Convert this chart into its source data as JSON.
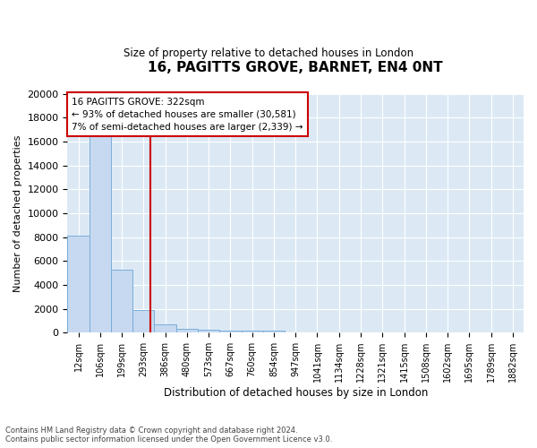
{
  "title": "16, PAGITTS GROVE, BARNET, EN4 0NT",
  "subtitle": "Size of property relative to detached houses in London",
  "xlabel": "Distribution of detached houses by size in London",
  "ylabel": "Number of detached properties",
  "footnote": "Contains HM Land Registry data © Crown copyright and database right 2024.\nContains public sector information licensed under the Open Government Licence v3.0.",
  "bar_categories": [
    "12sqm",
    "106sqm",
    "199sqm",
    "293sqm",
    "386sqm",
    "480sqm",
    "573sqm",
    "667sqm",
    "760sqm",
    "854sqm",
    "947sqm",
    "1041sqm",
    "1134sqm",
    "1228sqm",
    "1321sqm",
    "1415sqm",
    "1508sqm",
    "1602sqm",
    "1695sqm",
    "1789sqm",
    "1882sqm"
  ],
  "bar_values": [
    8100,
    16500,
    5300,
    1900,
    700,
    310,
    220,
    185,
    155,
    130,
    0,
    0,
    0,
    0,
    0,
    0,
    0,
    0,
    0,
    0,
    0
  ],
  "bar_color": "#c6d9f0",
  "bar_edge_color": "#7aadda",
  "property_line_color": "#cc0000",
  "annotation_text": "16 PAGITTS GROVE: 322sqm\n← 93% of detached houses are smaller (30,581)\n7% of semi-detached houses are larger (2,339) →",
  "annotation_box_color": "#ffffff",
  "annotation_box_edge_color": "#cc0000",
  "ylim": [
    0,
    20000
  ],
  "yticks": [
    0,
    2000,
    4000,
    6000,
    8000,
    10000,
    12000,
    14000,
    16000,
    18000,
    20000
  ],
  "plot_bg_color": "#dce9f5"
}
